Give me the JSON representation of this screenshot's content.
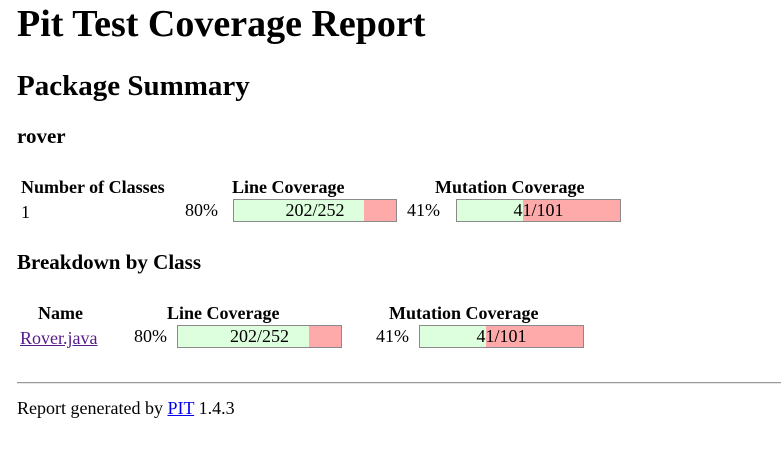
{
  "page": {
    "title": "Pit Test Coverage Report",
    "subtitle": "Package Summary",
    "package_name": "rover"
  },
  "summary": {
    "headers": {
      "classes": "Number of Classes",
      "line": "Line Coverage",
      "mutation": "Mutation Coverage"
    },
    "classes_count": "1",
    "line": {
      "percent": "80%",
      "ratio": "202/252",
      "fraction": 0.8016
    },
    "mutation": {
      "percent": "41%",
      "ratio": "41/101",
      "fraction": 0.4059
    }
  },
  "breakdown": {
    "title": "Breakdown by Class",
    "headers": {
      "name": "Name",
      "line": "Line Coverage",
      "mutation": "Mutation Coverage"
    },
    "rows": [
      {
        "name": "Rover.java",
        "line": {
          "percent": "80%",
          "ratio": "202/252",
          "fraction": 0.8016
        },
        "mutation": {
          "percent": "41%",
          "ratio": "41/101",
          "fraction": 0.4059
        }
      }
    ]
  },
  "footer": {
    "prefix": "Report generated by",
    "link": "PIT",
    "version": "1.4.3"
  },
  "colors": {
    "covered": "#ddffdd",
    "uncovered": "#ffaaaa",
    "visited_link": "#551a8b",
    "link": "#0000ee"
  }
}
